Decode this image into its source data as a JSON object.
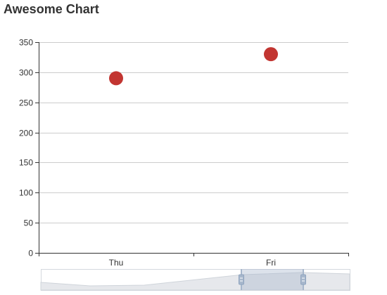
{
  "chart_data": {
    "type": "scatter",
    "title": "Awesome Chart",
    "categories": [
      "Thu",
      "Fri"
    ],
    "series": [
      {
        "values": [
          290,
          330
        ],
        "color": "#c23531"
      }
    ],
    "ylim": [
      0,
      350
    ],
    "yticks": [
      0,
      50,
      100,
      150,
      200,
      250,
      300,
      350
    ],
    "xlabel": "",
    "ylabel": "",
    "grid": true,
    "legend": false,
    "data_zoom": {
      "visible": true,
      "start_category": "Fri",
      "end_category": "Fri"
    }
  }
}
